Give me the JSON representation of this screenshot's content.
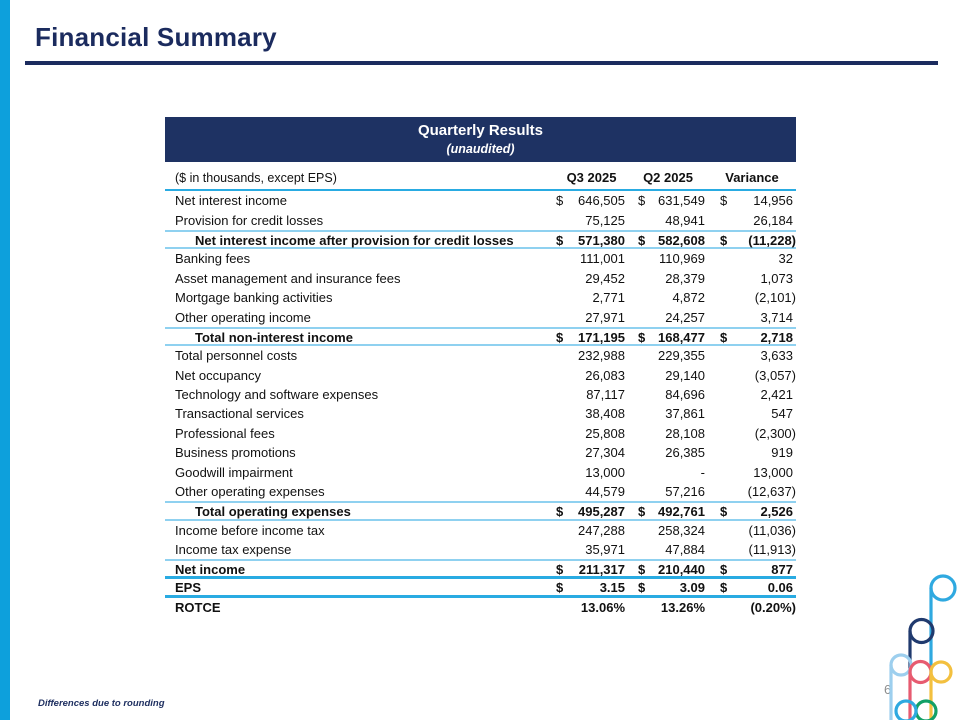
{
  "slide": {
    "title": "Financial Summary",
    "footnote": "Differences due to rounding",
    "page_number": "6"
  },
  "colors": {
    "navy_band": "#1e3263",
    "title_navy": "#1b2b5e",
    "accent_cyan": "#29abe2",
    "light_cyan_rule": "#8fd1f0",
    "left_stripe": "#0da0dc"
  },
  "table": {
    "header_title": "Quarterly Results",
    "header_subtitle": "(unaudited)",
    "units_label": "($ in thousands, except EPS)",
    "columns": [
      "Q3 2025",
      "Q2 2025",
      "Variance"
    ],
    "rows": [
      {
        "label": "Net interest income",
        "bold": false,
        "indent": false,
        "cells": [
          [
            "$",
            "646,505"
          ],
          [
            "$",
            "631,549"
          ],
          [
            "$",
            "14,956"
          ]
        ],
        "top": "",
        "bottom": ""
      },
      {
        "label": "Provision for credit losses",
        "bold": false,
        "indent": false,
        "cells": [
          [
            "",
            "75,125"
          ],
          [
            "",
            "48,941"
          ],
          [
            "",
            "26,184"
          ]
        ],
        "top": "",
        "bottom": ""
      },
      {
        "label": "Net interest income after provision for credit losses",
        "bold": true,
        "indent": true,
        "cells": [
          [
            "$",
            "571,380"
          ],
          [
            "$",
            "582,608"
          ],
          [
            "$",
            "(11,228)"
          ]
        ],
        "top": "light",
        "bottom": "light"
      },
      {
        "label": "Banking fees",
        "bold": false,
        "indent": false,
        "cells": [
          [
            "",
            "111,001"
          ],
          [
            "",
            "110,969"
          ],
          [
            "",
            "32"
          ]
        ],
        "top": "",
        "bottom": ""
      },
      {
        "label": "Asset management and insurance fees",
        "bold": false,
        "indent": false,
        "cells": [
          [
            "",
            "29,452"
          ],
          [
            "",
            "28,379"
          ],
          [
            "",
            "1,073"
          ]
        ],
        "top": "",
        "bottom": ""
      },
      {
        "label": "Mortgage banking activities",
        "bold": false,
        "indent": false,
        "cells": [
          [
            "",
            "2,771"
          ],
          [
            "",
            "4,872"
          ],
          [
            "",
            "(2,101)"
          ]
        ],
        "top": "",
        "bottom": ""
      },
      {
        "label": "Other operating income",
        "bold": false,
        "indent": false,
        "cells": [
          [
            "",
            "27,971"
          ],
          [
            "",
            "24,257"
          ],
          [
            "",
            "3,714"
          ]
        ],
        "top": "",
        "bottom": ""
      },
      {
        "label": "Total non-interest income",
        "bold": true,
        "indent": true,
        "cells": [
          [
            "$",
            "171,195"
          ],
          [
            "$",
            "168,477"
          ],
          [
            "$",
            "2,718"
          ]
        ],
        "top": "light",
        "bottom": "light"
      },
      {
        "label": "Total personnel costs",
        "bold": false,
        "indent": false,
        "cells": [
          [
            "",
            "232,988"
          ],
          [
            "",
            "229,355"
          ],
          [
            "",
            "3,633"
          ]
        ],
        "top": "",
        "bottom": ""
      },
      {
        "label": "Net occupancy",
        "bold": false,
        "indent": false,
        "cells": [
          [
            "",
            "26,083"
          ],
          [
            "",
            "29,140"
          ],
          [
            "",
            "(3,057)"
          ]
        ],
        "top": "",
        "bottom": ""
      },
      {
        "label": "Technology and software expenses",
        "bold": false,
        "indent": false,
        "cells": [
          [
            "",
            "87,117"
          ],
          [
            "",
            "84,696"
          ],
          [
            "",
            "2,421"
          ]
        ],
        "top": "",
        "bottom": ""
      },
      {
        "label": "Transactional services",
        "bold": false,
        "indent": false,
        "cells": [
          [
            "",
            "38,408"
          ],
          [
            "",
            "37,861"
          ],
          [
            "",
            "547"
          ]
        ],
        "top": "",
        "bottom": ""
      },
      {
        "label": "Professional fees",
        "bold": false,
        "indent": false,
        "cells": [
          [
            "",
            "25,808"
          ],
          [
            "",
            "28,108"
          ],
          [
            "",
            "(2,300)"
          ]
        ],
        "top": "",
        "bottom": ""
      },
      {
        "label": "Business promotions",
        "bold": false,
        "indent": false,
        "cells": [
          [
            "",
            "27,304"
          ],
          [
            "",
            "26,385"
          ],
          [
            "",
            "919"
          ]
        ],
        "top": "",
        "bottom": ""
      },
      {
        "label": "Goodwill impairment",
        "bold": false,
        "indent": false,
        "cells": [
          [
            "",
            "13,000"
          ],
          [
            "",
            "-"
          ],
          [
            "",
            "13,000"
          ]
        ],
        "top": "",
        "bottom": ""
      },
      {
        "label": "Other operating expenses",
        "bold": false,
        "indent": false,
        "cells": [
          [
            "",
            "44,579"
          ],
          [
            "",
            "57,216"
          ],
          [
            "",
            "(12,637)"
          ]
        ],
        "top": "",
        "bottom": ""
      },
      {
        "label": "Total operating expenses",
        "bold": true,
        "indent": true,
        "cells": [
          [
            "$",
            "495,287"
          ],
          [
            "$",
            "492,761"
          ],
          [
            "$",
            "2,526"
          ]
        ],
        "top": "light",
        "bottom": "light"
      },
      {
        "label": "Income before income tax",
        "bold": false,
        "indent": false,
        "cells": [
          [
            "",
            "247,288"
          ],
          [
            "",
            "258,324"
          ],
          [
            "",
            "(11,036)"
          ]
        ],
        "top": "",
        "bottom": ""
      },
      {
        "label": "Income tax expense",
        "bold": false,
        "indent": false,
        "cells": [
          [
            "",
            "35,971"
          ],
          [
            "",
            "47,884"
          ],
          [
            "",
            "(11,913)"
          ]
        ],
        "top": "",
        "bottom": ""
      },
      {
        "label": "Net income",
        "bold": true,
        "indent": false,
        "cells": [
          [
            "$",
            "211,317"
          ],
          [
            "$",
            "210,440"
          ],
          [
            "$",
            "877"
          ]
        ],
        "top": "light",
        "bottom": "strong"
      },
      {
        "label": "EPS",
        "bold": true,
        "indent": false,
        "cells": [
          [
            "$",
            "3.15"
          ],
          [
            "$",
            "3.09"
          ],
          [
            "$",
            "0.06"
          ]
        ],
        "top": "",
        "bottom": "strong"
      },
      {
        "label": "ROTCE",
        "bold": true,
        "indent": false,
        "cells": [
          [
            "",
            "13.06%"
          ],
          [
            "",
            "13.26%"
          ],
          [
            "",
            "(0.20%)"
          ]
        ],
        "top": "",
        "bottom": ""
      }
    ]
  },
  "logo": {
    "description": "multicolor-p-shapes-logo",
    "palette": [
      "#9dcfee",
      "#203a6e",
      "#e75b70",
      "#2fa9e0",
      "#f3c03f",
      "#12a066"
    ]
  }
}
